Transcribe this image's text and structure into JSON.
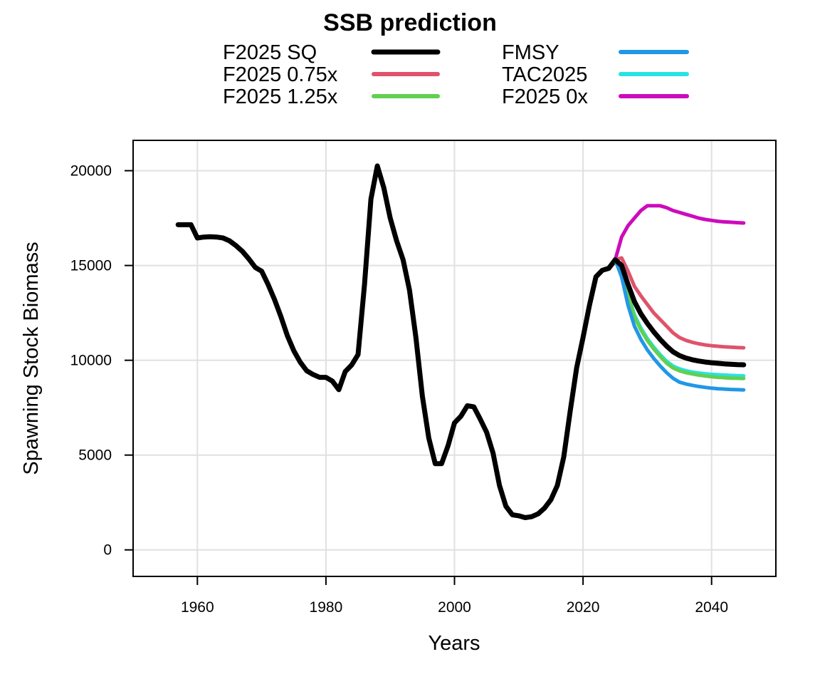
{
  "chart_data": {
    "type": "line",
    "title": "SSB prediction",
    "xlabel": "Years",
    "ylabel": "Spawning Stock Biomass",
    "xlim": [
      1950,
      2050
    ],
    "ylim": [
      -1400,
      21600
    ],
    "xticks": [
      1960,
      1980,
      2000,
      2020,
      2040
    ],
    "yticks": [
      0,
      5000,
      10000,
      15000,
      20000
    ],
    "grid": true,
    "legend_position": "top",
    "legend": [
      {
        "name": "F2025 SQ",
        "color": "#000000"
      },
      {
        "name": "F2025 0.75x",
        "color": "#DF536B"
      },
      {
        "name": "F2025 1.25x",
        "color": "#61D04F"
      },
      {
        "name": "FMSY",
        "color": "#2297E6"
      },
      {
        "name": "TAC2025",
        "color": "#28E2E5"
      },
      {
        "name": "F2025 0x",
        "color": "#CD0BBC"
      }
    ],
    "historical": {
      "name": "F2025 SQ",
      "color": "#000000",
      "x": [
        1957,
        1958,
        1959,
        1960,
        1961,
        1962,
        1963,
        1964,
        1965,
        1966,
        1967,
        1968,
        1969,
        1970,
        1971,
        1972,
        1973,
        1974,
        1975,
        1976,
        1977,
        1978,
        1979,
        1980,
        1981,
        1982,
        1983,
        1984,
        1985,
        1986,
        1987,
        1988,
        1989,
        1990,
        1991,
        1992,
        1993,
        1994,
        1995,
        1996,
        1997,
        1998,
        1999,
        2000,
        2001,
        2002,
        2003,
        2004,
        2005,
        2006,
        2007,
        2008,
        2009,
        2010,
        2011,
        2012,
        2013,
        2014,
        2015,
        2016,
        2017,
        2018,
        2019,
        2020,
        2021,
        2022,
        2023,
        2024,
        2025
      ],
      "y": [
        17150,
        17150,
        17150,
        16450,
        16500,
        16520,
        16500,
        16450,
        16300,
        16050,
        15750,
        15350,
        14900,
        14700,
        14000,
        13200,
        12300,
        11300,
        10500,
        9900,
        9450,
        9250,
        9100,
        9100,
        8900,
        8450,
        9400,
        9750,
        10300,
        14000,
        18500,
        20250,
        19100,
        17500,
        16300,
        15300,
        13700,
        11200,
        8100,
        5900,
        4550,
        4550,
        5500,
        6700,
        7050,
        7600,
        7550,
        6900,
        6200,
        5100,
        3400,
        2300,
        1850,
        1800,
        1700,
        1750,
        1900,
        2200,
        2650,
        3400,
        4900,
        7300,
        9600,
        11200,
        12900,
        14400,
        14750,
        14850,
        15300
      ]
    },
    "series": [
      {
        "name": "F2025 0x",
        "color": "#CD0BBC",
        "x": [
          2025,
          2026,
          2027,
          2028,
          2029,
          2030,
          2031,
          2032,
          2033,
          2034,
          2035,
          2036,
          2037,
          2038,
          2039,
          2040,
          2041,
          2042,
          2043,
          2044,
          2045
        ],
        "y": [
          15300,
          16500,
          17100,
          17500,
          17900,
          18150,
          18150,
          18150,
          18050,
          17900,
          17800,
          17700,
          17600,
          17500,
          17430,
          17380,
          17330,
          17300,
          17280,
          17260,
          17240
        ]
      },
      {
        "name": "F2025 0.75x",
        "color": "#DF536B",
        "x": [
          2025,
          2026,
          2027,
          2028,
          2029,
          2030,
          2031,
          2032,
          2033,
          2034,
          2035,
          2036,
          2037,
          2038,
          2039,
          2040,
          2041,
          2042,
          2043,
          2044,
          2045
        ],
        "y": [
          15300,
          15400,
          14700,
          13900,
          13400,
          12950,
          12500,
          12150,
          11800,
          11450,
          11200,
          11050,
          10950,
          10870,
          10810,
          10770,
          10740,
          10710,
          10690,
          10670,
          10660
        ]
      },
      {
        "name": "TAC2025",
        "color": "#28E2E5",
        "x": [
          2025,
          2026,
          2027,
          2028,
          2029,
          2030,
          2031,
          2032,
          2033,
          2034,
          2035,
          2036,
          2037,
          2038,
          2039,
          2040,
          2041,
          2042,
          2043,
          2044,
          2045
        ],
        "y": [
          15300,
          14800,
          13500,
          12400,
          11700,
          11150,
          10700,
          10300,
          9950,
          9700,
          9550,
          9450,
          9380,
          9330,
          9290,
          9260,
          9240,
          9220,
          9200,
          9190,
          9180
        ]
      },
      {
        "name": "F2025 1.25x",
        "color": "#61D04F",
        "x": [
          2025,
          2026,
          2027,
          2028,
          2029,
          2030,
          2031,
          2032,
          2033,
          2034,
          2035,
          2036,
          2037,
          2038,
          2039,
          2040,
          2041,
          2042,
          2043,
          2044,
          2045
        ],
        "y": [
          15300,
          14700,
          13400,
          12300,
          11600,
          11050,
          10600,
          10200,
          9850,
          9600,
          9450,
          9350,
          9280,
          9220,
          9170,
          9130,
          9100,
          9080,
          9060,
          9050,
          9040
        ]
      },
      {
        "name": "FMSY",
        "color": "#2297E6",
        "x": [
          2025,
          2026,
          2027,
          2028,
          2029,
          2030,
          2031,
          2032,
          2033,
          2034,
          2035,
          2036,
          2037,
          2038,
          2039,
          2040,
          2041,
          2042,
          2043,
          2044,
          2045
        ],
        "y": [
          15300,
          14400,
          12900,
          11800,
          11100,
          10550,
          10100,
          9700,
          9350,
          9050,
          8850,
          8750,
          8680,
          8620,
          8570,
          8530,
          8500,
          8480,
          8460,
          8450,
          8440
        ]
      },
      {
        "name": "F2025 SQ",
        "color": "#000000",
        "x": [
          2025,
          2026,
          2027,
          2028,
          2029,
          2030,
          2031,
          2032,
          2033,
          2034,
          2035,
          2036,
          2037,
          2038,
          2039,
          2040,
          2041,
          2042,
          2043,
          2044,
          2045
        ],
        "y": [
          15300,
          15000,
          14000,
          13100,
          12450,
          11950,
          11500,
          11100,
          10750,
          10450,
          10250,
          10120,
          10030,
          9960,
          9910,
          9870,
          9840,
          9810,
          9790,
          9770,
          9760
        ]
      }
    ]
  }
}
